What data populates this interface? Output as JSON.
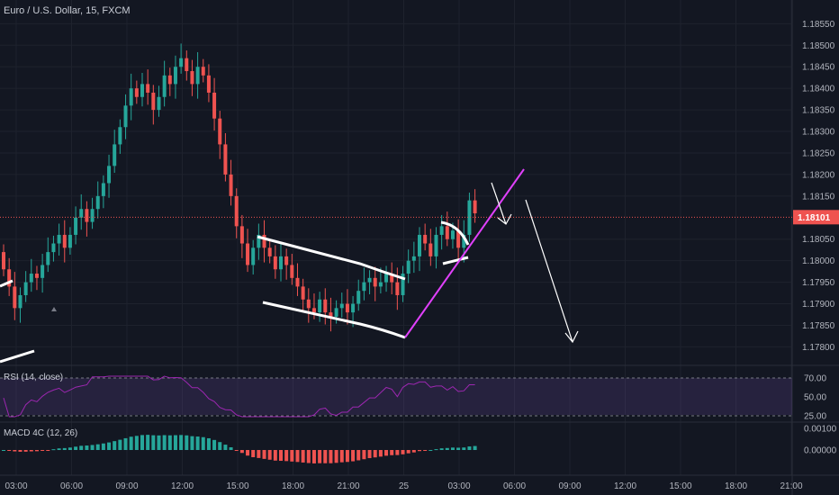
{
  "chart_title": "Euro / U.S. Dollar, 15, FXCM",
  "colors": {
    "background": "#131722",
    "up": "#26a69a",
    "down": "#ef5350",
    "drawing_white": "#ffffff",
    "trendline": "#e040fb",
    "rsi_line": "#9c27b0",
    "macd_up": "#26a69a",
    "macd_down": "#ef5350"
  },
  "chart_data": [
    {
      "type": "candlestick",
      "title": "Euro / U.S. Dollar, 15, FXCM",
      "x_tick_labels": [
        "03:00",
        "06:00",
        "09:00",
        "12:00",
        "15:00",
        "18:00",
        "21:00",
        "25",
        "03:00",
        "06:00",
        "09:00",
        "12:00",
        "15:00",
        "18:00",
        "21:00"
      ],
      "y_tick_labels": [
        "1.18550",
        "1.18500",
        "1.18450",
        "1.18400",
        "1.18350",
        "1.18300",
        "1.18250",
        "1.18200",
        "1.18150",
        "1.18050",
        "1.18000",
        "1.17950",
        "1.17900",
        "1.17850",
        "1.17800"
      ],
      "ylim": [
        1.1778,
        1.1858
      ],
      "last_price": "1.18101",
      "closes": [
        1.1798,
        1.1794,
        1.1789,
        1.1792,
        1.1795,
        1.1797,
        1.1796,
        1.1799,
        1.1802,
        1.1804,
        1.1806,
        1.1803,
        1.1806,
        1.181,
        1.1812,
        1.1809,
        1.1812,
        1.1815,
        1.1818,
        1.1822,
        1.1827,
        1.1831,
        1.1836,
        1.184,
        1.1838,
        1.1841,
        1.1839,
        1.1835,
        1.1838,
        1.1843,
        1.1841,
        1.1845,
        1.1847,
        1.1844,
        1.1841,
        1.1845,
        1.1843,
        1.1839,
        1.1833,
        1.1827,
        1.182,
        1.1815,
        1.1808,
        1.1804,
        1.1799,
        1.1803,
        1.1806,
        1.1803,
        1.1801,
        1.1798,
        1.1801,
        1.1799,
        1.1796,
        1.1794,
        1.1791,
        1.1789,
        1.1788,
        1.1791,
        1.1788,
        1.1787,
        1.1789,
        1.179,
        1.1788,
        1.179,
        1.1793,
        1.1795,
        1.1796,
        1.1794,
        1.1795,
        1.1797,
        1.1795,
        1.1792,
        1.1797,
        1.18,
        1.1801,
        1.1806,
        1.1804,
        1.1801,
        1.1806,
        1.1808,
        1.1805,
        1.1807,
        1.1803,
        1.1806,
        1.1814,
        1.1811
      ],
      "series": [
        {
          "name": "RSI (14, close)",
          "levels": [
            "70.00",
            "50.00",
            "25.00"
          ]
        },
        {
          "name": "MACD 4C (12, 26)",
          "levels": [
            "0.00100",
            "0.00000"
          ]
        }
      ]
    }
  ]
}
